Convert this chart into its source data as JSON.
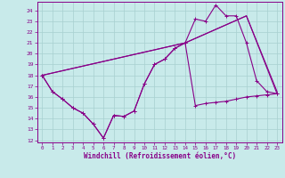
{
  "xlabel": "Windchill (Refroidissement éolien,°C)",
  "background_color": "#c8eaea",
  "grid_color": "#a8d0d0",
  "line_color": "#880088",
  "xlim": [
    -0.5,
    23.5
  ],
  "ylim": [
    11.8,
    24.8
  ],
  "yticks": [
    12,
    13,
    14,
    15,
    16,
    17,
    18,
    19,
    20,
    21,
    22,
    23,
    24
  ],
  "xticks": [
    0,
    1,
    2,
    3,
    4,
    5,
    6,
    7,
    8,
    9,
    10,
    11,
    12,
    13,
    14,
    15,
    16,
    17,
    18,
    19,
    20,
    21,
    22,
    23
  ],
  "line1_x": [
    0,
    1,
    2,
    3,
    4,
    5,
    6,
    7,
    8,
    9,
    10,
    11,
    12,
    13,
    14,
    15,
    16,
    17,
    18,
    19,
    20,
    21,
    22,
    23
  ],
  "line1_y": [
    18.0,
    16.5,
    15.8,
    15.0,
    14.5,
    13.5,
    12.2,
    14.3,
    14.2,
    14.7,
    17.2,
    19.0,
    19.5,
    20.5,
    21.0,
    23.2,
    23.0,
    24.5,
    23.5,
    23.5,
    21.0,
    17.5,
    16.5,
    16.3
  ],
  "line2_x": [
    0,
    1,
    2,
    3,
    4,
    5,
    6,
    7,
    8,
    9,
    10,
    11,
    12,
    13,
    14,
    15,
    16,
    17,
    18,
    19,
    20,
    21,
    22,
    23
  ],
  "line2_y": [
    18.0,
    16.5,
    15.8,
    15.0,
    14.5,
    13.5,
    12.2,
    14.3,
    14.2,
    14.7,
    17.2,
    19.0,
    19.5,
    20.5,
    21.0,
    15.2,
    15.4,
    15.5,
    15.6,
    15.8,
    16.0,
    16.1,
    16.2,
    16.3
  ],
  "line3_x": [
    0,
    14,
    20,
    23
  ],
  "line3_y": [
    18.0,
    21.0,
    23.5,
    16.5
  ],
  "line4_x": [
    0,
    14,
    20,
    23
  ],
  "line4_y": [
    18.0,
    21.0,
    23.5,
    16.3
  ]
}
